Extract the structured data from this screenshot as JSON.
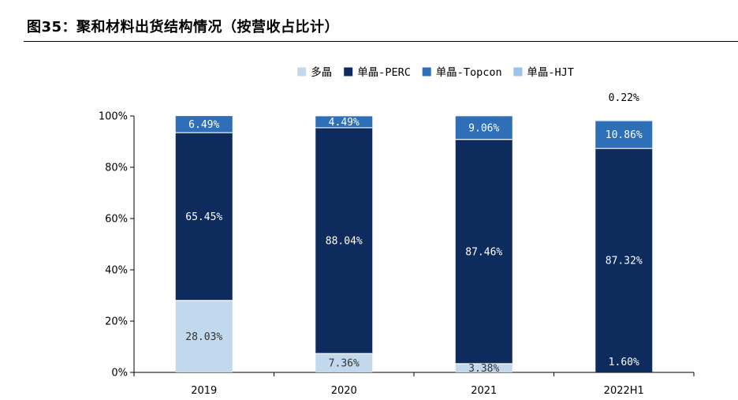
{
  "figure": {
    "title": "图35：聚和材料出货结构情况（按营收占比计）"
  },
  "chart_data": {
    "type": "bar",
    "stacked": true,
    "categories": [
      "2019",
      "2020",
      "2021",
      "2022H1"
    ],
    "series": [
      {
        "name": "多晶",
        "color": "#c2d8ec",
        "values": [
          28.03,
          7.36,
          3.38,
          0
        ],
        "labels": [
          "28.03%",
          "7.36%",
          "3.38%",
          ""
        ]
      },
      {
        "name": "单晶-PERC",
        "color": "#0e2b5e",
        "values": [
          65.45,
          88.04,
          87.46,
          87.32
        ],
        "labels": [
          "65.45%",
          "88.04%",
          "87.46%",
          "87.32%"
        ]
      },
      {
        "name": "单晶-Topcon",
        "color": "#2f6fb7",
        "values": [
          6.49,
          4.49,
          9.06,
          10.86
        ],
        "labels": [
          "6.49%",
          "4.49%",
          "9.06%",
          "10.86%"
        ]
      },
      {
        "name": "单晶-HJT",
        "color": "#9cc3e8",
        "values": [
          0,
          0,
          0,
          0.22
        ],
        "labels": [
          "",
          "",
          "",
          "0.22%"
        ]
      }
    ],
    "extra_labels": [
      {
        "category": "2022H1",
        "text": "1.60%"
      }
    ],
    "yticks": [
      "0%",
      "20%",
      "40%",
      "60%",
      "80%",
      "100%"
    ],
    "ylim": [
      0,
      100
    ],
    "legend": "top-center",
    "xlabel": "",
    "ylabel": ""
  }
}
